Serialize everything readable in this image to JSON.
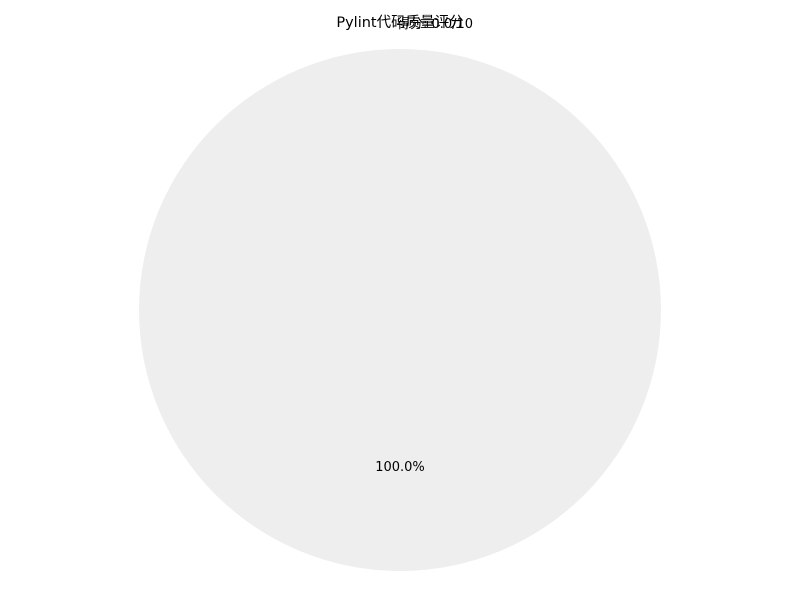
{
  "chart_data": {
    "type": "pie",
    "title": "Pylint代码质量评分",
    "categories": [
      "得分: 0.0/10"
    ],
    "values": [
      100.0
    ],
    "percent_labels": [
      "100.0%"
    ],
    "colors": [
      "#eeeeee"
    ],
    "legend": "none",
    "grid": false
  }
}
